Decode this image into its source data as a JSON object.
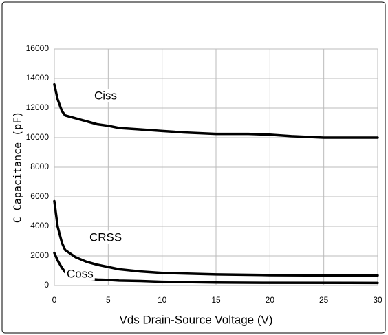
{
  "chart_data": {
    "type": "line",
    "xlabel": "Vds Drain-Source Voltage (V)",
    "ylabel": "C Capacitance (pF)",
    "xlim": [
      0,
      30
    ],
    "xticks": [
      0,
      5,
      10,
      15,
      20,
      25,
      30
    ],
    "ylim": [
      0,
      16000
    ],
    "yticks": [
      0,
      2000,
      4000,
      6000,
      8000,
      10000,
      12000,
      14000,
      16000
    ],
    "grid": true,
    "series": [
      {
        "name": "Ciss",
        "color": "#000000",
        "x": [
          0,
          0.3,
          0.7,
          1,
          2,
          3,
          4,
          5,
          6,
          8,
          10,
          12,
          15,
          18,
          20,
          22,
          25,
          30
        ],
        "values": [
          13600,
          12600,
          11800,
          11500,
          11300,
          11100,
          10900,
          10800,
          10650,
          10550,
          10450,
          10350,
          10250,
          10250,
          10200,
          10100,
          10000,
          10000
        ]
      },
      {
        "name": "CRSS",
        "color": "#000000",
        "x": [
          0,
          0.3,
          0.7,
          1,
          2,
          3,
          4,
          5,
          6,
          8,
          10,
          15,
          20,
          25,
          30
        ],
        "values": [
          5700,
          4000,
          2900,
          2400,
          1900,
          1600,
          1400,
          1250,
          1100,
          950,
          850,
          750,
          700,
          680,
          680
        ]
      },
      {
        "name": "Coss",
        "color": "#000000",
        "x": [
          0,
          0.3,
          0.7,
          1,
          2,
          3,
          4,
          5,
          6,
          8,
          10,
          15,
          20,
          30
        ],
        "values": [
          2200,
          1700,
          1200,
          900,
          600,
          450,
          400,
          380,
          330,
          300,
          250,
          200,
          180,
          170
        ]
      }
    ]
  }
}
